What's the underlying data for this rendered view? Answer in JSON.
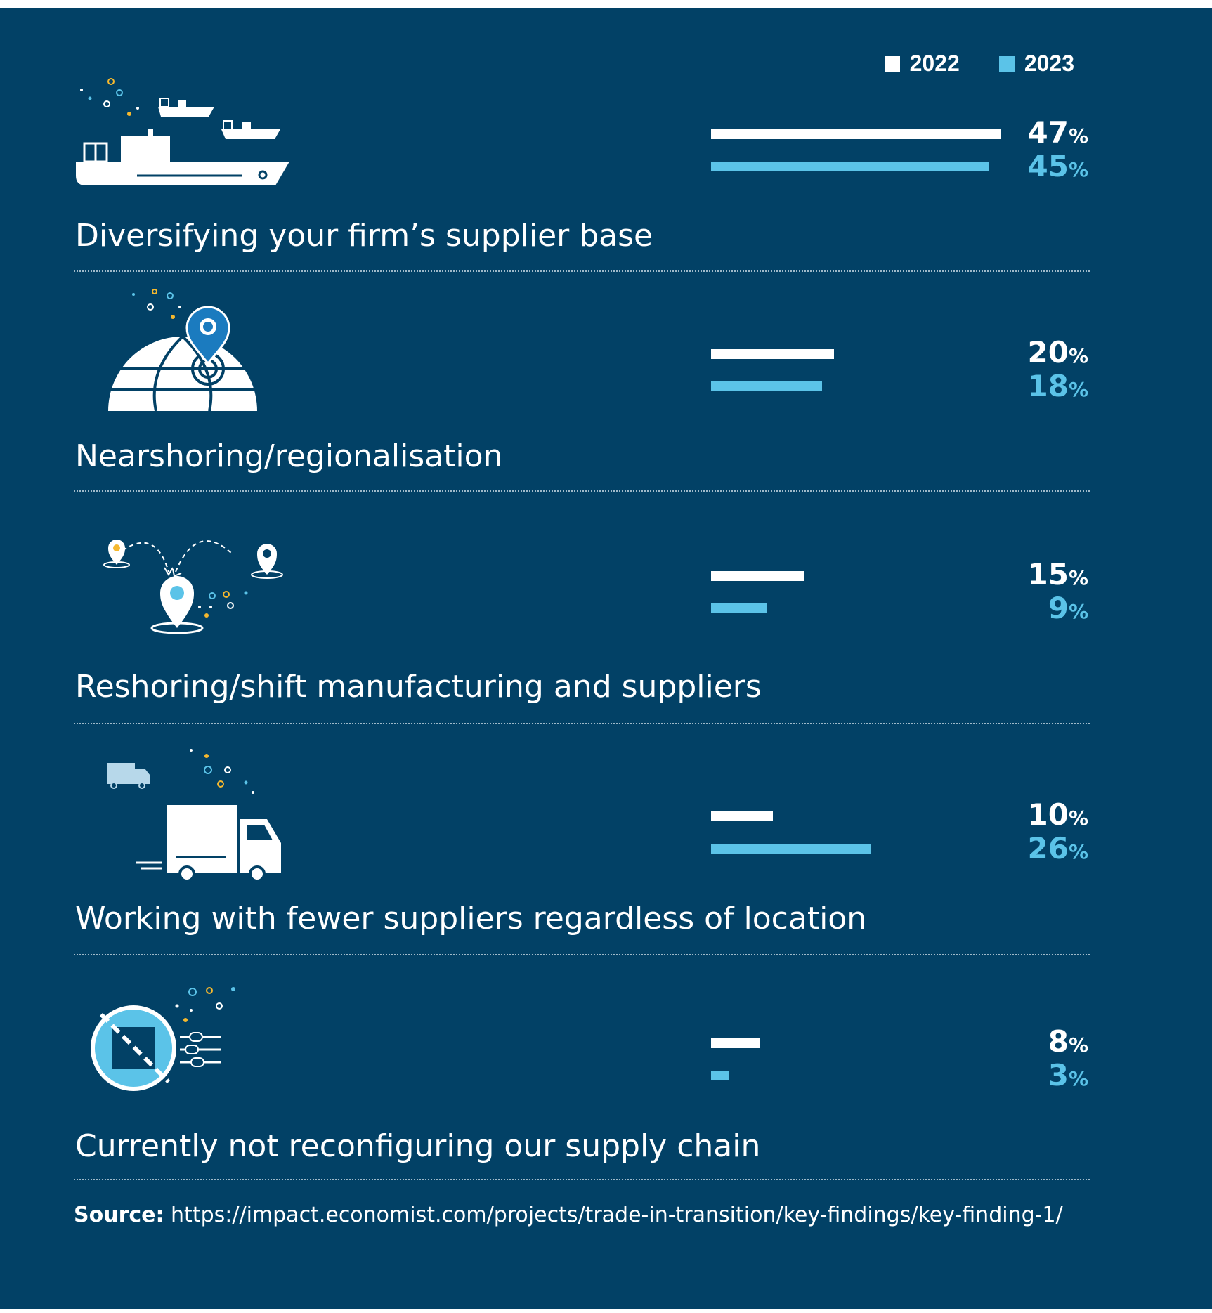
{
  "colors": {
    "background": "#024166",
    "series_2022": "#ffffff",
    "series_2023": "#5bc3e8"
  },
  "legend": [
    {
      "label": "2022",
      "color": "#ffffff"
    },
    {
      "label": "2023",
      "color": "#5bc3e8"
    }
  ],
  "chart_data": {
    "type": "bar",
    "orientation": "horizontal",
    "categories": [
      "Diversifying your firm’s supplier base",
      "Nearshoring/regionalisation",
      "Reshoring/shift manufacturing and suppliers",
      "Working with fewer suppliers regardless of location",
      "Currently not reconfiguring our supply chain"
    ],
    "series": [
      {
        "name": "2022",
        "values": [
          47,
          20,
          15,
          10,
          8
        ]
      },
      {
        "name": "2023",
        "values": [
          45,
          18,
          9,
          26,
          3
        ]
      }
    ],
    "value_labels_2022": [
      "47",
      "20",
      "15",
      "10",
      "8"
    ],
    "value_labels_2023": [
      "45",
      "18",
      "9",
      "26",
      "3"
    ],
    "unit": "%",
    "category_icons": [
      "cargo-ships-icon",
      "globe-location-pin-icon",
      "relocation-pins-icon",
      "delivery-truck-icon",
      "no-reconfiguration-icon"
    ],
    "grid": false,
    "legend_position": "top-right"
  },
  "source": {
    "label": "Source:",
    "url": "https://impact.economist.com/projects/trade-in-transition/key-findings/key-finding-1/"
  }
}
